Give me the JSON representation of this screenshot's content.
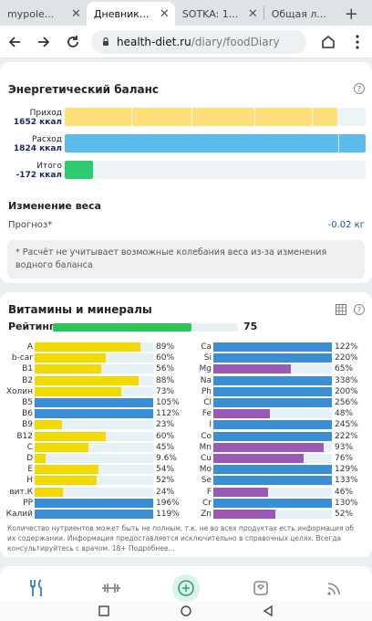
{
  "browser": {
    "tabs": [
      {
        "title": "mypole...",
        "active": false
      },
      {
        "title": "Дневник...",
        "active": true
      },
      {
        "title": "SOTKA: 1...",
        "active": false
      },
      {
        "title": "Общая л...",
        "active": false
      }
    ],
    "url_host": "health-diet.ru",
    "url_path": "/diary/foodDiary"
  },
  "energy": {
    "title": "Энергетический баланс",
    "rows": [
      {
        "label": "Приход",
        "value": "1652 ккал",
        "fraction": 0.905,
        "color": "#fde07a"
      },
      {
        "label": "Расход",
        "value": "1824 ккал",
        "fraction": 1.0,
        "color": "#5bbbea"
      },
      {
        "label": "Итого",
        "value": "-172 ккал",
        "fraction": 0.095,
        "color": "#2ecc71"
      }
    ]
  },
  "weight": {
    "title": "Изменение веса",
    "forecast_label": "Прогноз*",
    "forecast_value": "-0.02 кг",
    "note": "* Расчёт не учитывает возможные колебания веса из-за изменения водного баланса"
  },
  "vitamins": {
    "title": "Витамины и минералы",
    "rating_label": "Рейтинг",
    "rating_value": "75",
    "rating_fraction": 0.75,
    "left_color": "#f2d900",
    "right_color": "#9b59b6",
    "over_color": "#3a8fd4",
    "left": [
      {
        "name": "A",
        "pct": "89%",
        "v": 89
      },
      {
        "name": "b-car",
        "pct": "60%",
        "v": 60
      },
      {
        "name": "B1",
        "pct": "56%",
        "v": 56
      },
      {
        "name": "B2",
        "pct": "88%",
        "v": 88
      },
      {
        "name": "Холин",
        "pct": "73%",
        "v": 73
      },
      {
        "name": "B5",
        "pct": "105%",
        "v": 105
      },
      {
        "name": "B6",
        "pct": "112%",
        "v": 112
      },
      {
        "name": "B9",
        "pct": "23%",
        "v": 23
      },
      {
        "name": "B12",
        "pct": "60%",
        "v": 60
      },
      {
        "name": "C",
        "pct": "45%",
        "v": 45
      },
      {
        "name": "D",
        "pct": "9.6%",
        "v": 9.6
      },
      {
        "name": "E",
        "pct": "54%",
        "v": 54
      },
      {
        "name": "H",
        "pct": "52%",
        "v": 52
      },
      {
        "name": "вит.К",
        "pct": "24%",
        "v": 24
      },
      {
        "name": "PP",
        "pct": "196%",
        "v": 196
      },
      {
        "name": "Калий",
        "pct": "119%",
        "v": 119
      }
    ],
    "right": [
      {
        "name": "Ca",
        "pct": "122%",
        "v": 122
      },
      {
        "name": "Si",
        "pct": "220%",
        "v": 220
      },
      {
        "name": "Mg",
        "pct": "65%",
        "v": 65
      },
      {
        "name": "Na",
        "pct": "338%",
        "v": 338
      },
      {
        "name": "Ph",
        "pct": "200%",
        "v": 200
      },
      {
        "name": "Cl",
        "pct": "256%",
        "v": 256
      },
      {
        "name": "Fe",
        "pct": "48%",
        "v": 48
      },
      {
        "name": "I",
        "pct": "245%",
        "v": 245
      },
      {
        "name": "Co",
        "pct": "222%",
        "v": 222
      },
      {
        "name": "Mn",
        "pct": "93%",
        "v": 93
      },
      {
        "name": "Cu",
        "pct": "76%",
        "v": 76
      },
      {
        "name": "Mo",
        "pct": "129%",
        "v": 129
      },
      {
        "name": "Se",
        "pct": "133%",
        "v": 133
      },
      {
        "name": "F",
        "pct": "46%",
        "v": 46
      },
      {
        "name": "Cr",
        "pct": "130%",
        "v": 130
      },
      {
        "name": "Zn",
        "pct": "52%",
        "v": 52
      }
    ],
    "disclaimer": "Количество нутриентов может быть не полным, т.к. не во всех продуктах есть информация об их содержании. Информация предоставляется исключительно в справочных целях. Всегда консультируйтесь с врачом. 18+ Подробнее..."
  },
  "appnav": [
    "food-icon",
    "dumbbell-icon",
    "add-icon",
    "scale-icon",
    "feed-icon"
  ]
}
